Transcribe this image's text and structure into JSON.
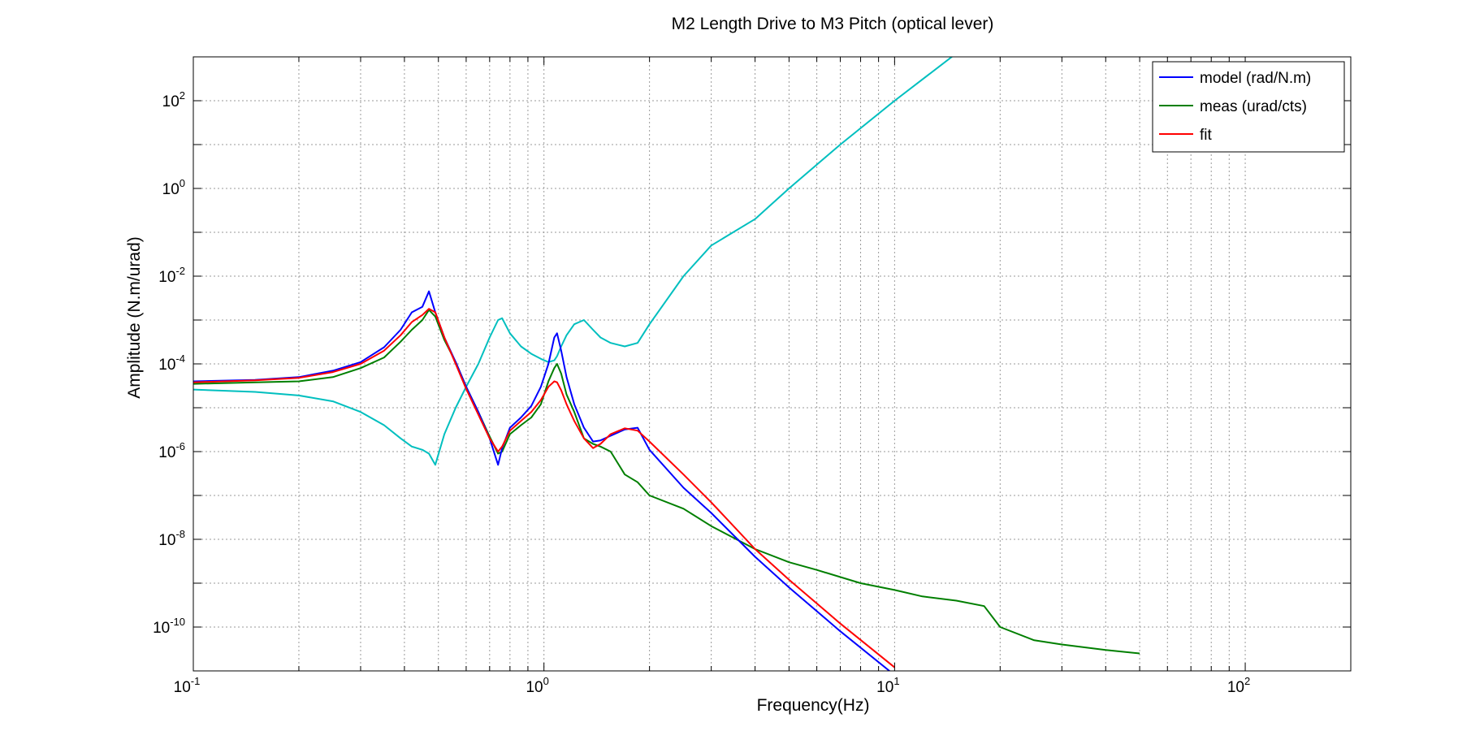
{
  "chart_data": {
    "type": "line",
    "title": "M2 Length Drive to M3 Pitch (optical lever)",
    "xlabel": "Frequency(Hz)",
    "ylabel": "Amplitude (N.m/urad)",
    "xscale": "log",
    "yscale": "log",
    "xlim": [
      0.1,
      200
    ],
    "ylim": [
      1e-11,
      1000
    ],
    "grid": true,
    "legend_position": "top-right",
    "x_ticks": [
      {
        "base": "10",
        "exp": "-1"
      },
      {
        "base": "10",
        "exp": "0"
      },
      {
        "base": "10",
        "exp": "1"
      },
      {
        "base": "10",
        "exp": "2"
      }
    ],
    "y_ticks": [
      {
        "base": "10",
        "exp": "-10"
      },
      {
        "base": "10",
        "exp": "-8"
      },
      {
        "base": "10",
        "exp": "-6"
      },
      {
        "base": "10",
        "exp": "-4"
      },
      {
        "base": "10",
        "exp": "-2"
      },
      {
        "base": "10",
        "exp": "0"
      },
      {
        "base": "10",
        "exp": "2"
      }
    ],
    "series": [
      {
        "name": "model (rad/N.m)",
        "color": "#0000ff",
        "x": [
          0.1,
          0.15,
          0.2,
          0.25,
          0.3,
          0.35,
          0.39,
          0.42,
          0.45,
          0.47,
          0.49,
          0.52,
          0.56,
          0.6,
          0.65,
          0.7,
          0.74,
          0.76,
          0.8,
          0.86,
          0.92,
          0.98,
          1.03,
          1.07,
          1.09,
          1.12,
          1.16,
          1.22,
          1.3,
          1.38,
          1.45,
          1.55,
          1.7,
          1.85,
          2.0,
          2.5,
          3,
          4,
          5,
          7,
          10
        ],
        "y": [
          4e-05,
          4.3e-05,
          5e-05,
          7e-05,
          0.00011,
          0.00024,
          0.0006,
          0.0015,
          0.002,
          0.0045,
          0.0015,
          0.0004,
          0.00011,
          3e-05,
          8e-06,
          2e-06,
          5e-07,
          1.2e-06,
          3.5e-06,
          6e-06,
          1.1e-05,
          3e-05,
          0.0001,
          0.0004,
          0.0005,
          0.0002,
          5e-05,
          1.2e-05,
          3.5e-06,
          1.7e-06,
          1.8e-06,
          2.3e-06,
          3.2e-06,
          3.5e-06,
          1.1e-06,
          1.5e-07,
          4e-08,
          4e-09,
          8e-10,
          8e-11,
          8e-12
        ]
      },
      {
        "name": "meas (urad/cts)",
        "color": "#007f00",
        "x": [
          0.1,
          0.15,
          0.2,
          0.25,
          0.3,
          0.35,
          0.39,
          0.42,
          0.45,
          0.47,
          0.49,
          0.52,
          0.56,
          0.6,
          0.65,
          0.7,
          0.74,
          0.76,
          0.8,
          0.86,
          0.92,
          0.98,
          1.03,
          1.07,
          1.09,
          1.12,
          1.16,
          1.22,
          1.3,
          1.38,
          1.45,
          1.55,
          1.7,
          1.85,
          2.0,
          2.5,
          3,
          4,
          5,
          6,
          8,
          10,
          12,
          15,
          18,
          20,
          25,
          30,
          40,
          50
        ],
        "y": [
          3.5e-05,
          3.8e-05,
          4e-05,
          5e-05,
          8e-05,
          0.00014,
          0.00032,
          0.0006,
          0.001,
          0.0017,
          0.0012,
          0.00035,
          0.00011,
          3e-05,
          8e-06,
          2.2e-06,
          9e-07,
          1e-06,
          2.5e-06,
          4e-06,
          6e-06,
          1.2e-05,
          4e-05,
          8e-05,
          0.0001,
          6e-05,
          2e-05,
          8e-06,
          2e-06,
          1.5e-06,
          1.3e-06,
          1e-06,
          3e-07,
          2e-07,
          1e-07,
          5e-08,
          2e-08,
          6e-09,
          3e-09,
          2e-09,
          1e-09,
          7e-10,
          5e-10,
          4e-10,
          3e-10,
          1e-10,
          5e-11,
          4e-11,
          3e-11,
          2.5e-11
        ]
      },
      {
        "name": "fit",
        "color": "#ff0000",
        "x": [
          0.1,
          0.15,
          0.2,
          0.25,
          0.3,
          0.35,
          0.39,
          0.42,
          0.45,
          0.47,
          0.49,
          0.52,
          0.56,
          0.6,
          0.65,
          0.7,
          0.74,
          0.76,
          0.8,
          0.86,
          0.92,
          0.98,
          1.03,
          1.07,
          1.09,
          1.12,
          1.16,
          1.22,
          1.3,
          1.38,
          1.45,
          1.55,
          1.7,
          1.85,
          2.0,
          2.5,
          3,
          4,
          5,
          7,
          10
        ],
        "y": [
          3.8e-05,
          4.2e-05,
          4.8e-05,
          6.5e-05,
          0.0001,
          0.0002,
          0.00045,
          0.0009,
          0.0013,
          0.0018,
          0.0015,
          0.0004,
          0.0001,
          2.7e-05,
          7e-06,
          2e-06,
          1e-06,
          1.3e-06,
          3e-06,
          5e-06,
          8e-06,
          1.5e-05,
          3e-05,
          4e-05,
          3.8e-05,
          2.5e-05,
          1.2e-05,
          5e-06,
          2e-06,
          1.2e-06,
          1.5e-06,
          2.5e-06,
          3.4e-06,
          3e-06,
          1.7e-06,
          3e-07,
          7e-08,
          6e-09,
          1.2e-09,
          1.2e-10,
          1.2e-11
        ]
      },
      {
        "color": "#00bfbf",
        "x": [
          0.1,
          0.15,
          0.2,
          0.25,
          0.3,
          0.35,
          0.39,
          0.42,
          0.45,
          0.47,
          0.49,
          0.52,
          0.56,
          0.6,
          0.65,
          0.7,
          0.74,
          0.76,
          0.8,
          0.86,
          0.92,
          0.98,
          1.03,
          1.07,
          1.09,
          1.12,
          1.16,
          1.22,
          1.3,
          1.38,
          1.45,
          1.55,
          1.7,
          1.85,
          2.0,
          2.5,
          3,
          4,
          5,
          7,
          10,
          15
        ],
        "y": [
          2.6e-05,
          2.3e-05,
          1.9e-05,
          1.4e-05,
          8e-06,
          4e-06,
          2e-06,
          1.3e-06,
          1.1e-06,
          9e-07,
          5e-07,
          2.5e-06,
          1e-05,
          3e-05,
          0.0001,
          0.0004,
          0.001,
          0.0011,
          0.0005,
          0.00025,
          0.00017,
          0.00013,
          0.00011,
          0.00012,
          0.00015,
          0.00025,
          0.00045,
          0.0008,
          0.001,
          0.0006,
          0.0004,
          0.0003,
          0.00025,
          0.0003,
          0.0008,
          0.01,
          0.05,
          0.2,
          1,
          10,
          100,
          1200
        ]
      }
    ]
  }
}
